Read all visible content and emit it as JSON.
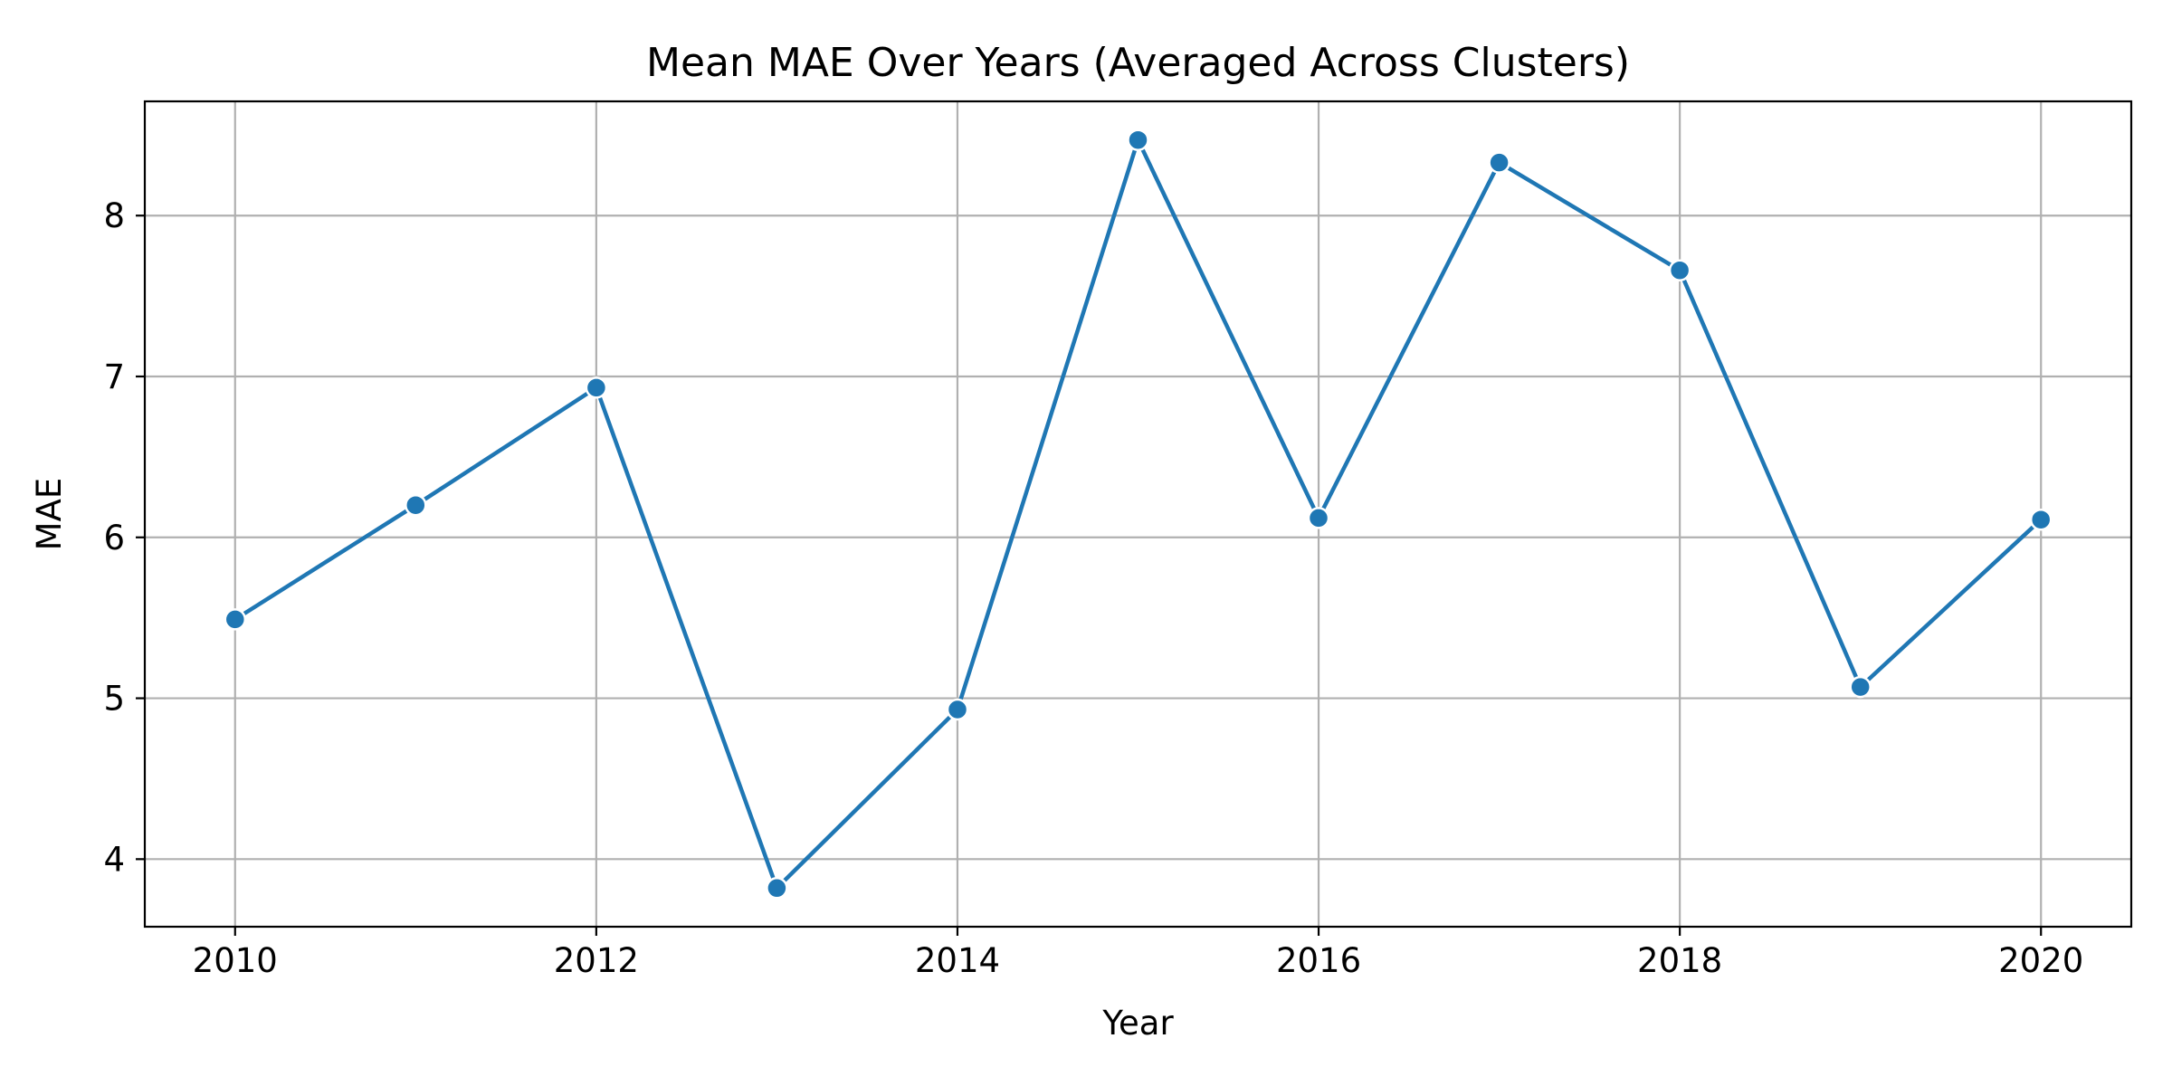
{
  "chart_data": {
    "type": "line",
    "title": "Mean MAE Over Years (Averaged Across Clusters)",
    "xlabel": "Year",
    "ylabel": "MAE",
    "x": [
      2010,
      2011,
      2012,
      2013,
      2014,
      2015,
      2016,
      2017,
      2018,
      2019,
      2020
    ],
    "series": [
      {
        "values": [
          5.49,
          6.2,
          6.93,
          3.82,
          4.93,
          8.47,
          6.12,
          8.33,
          7.66,
          5.07,
          6.11
        ],
        "color": "#1f77b4",
        "marker": "circle"
      }
    ],
    "xlim": [
      2009.5,
      2020.5
    ],
    "ylim": [
      3.58,
      8.71
    ],
    "xticks": [
      2010,
      2012,
      2014,
      2016,
      2018,
      2020
    ],
    "yticks": [
      4,
      5,
      6,
      7,
      8
    ],
    "grid": true,
    "legend": "none",
    "colors": {
      "grid": "#b0b0b0",
      "axes": "#000000",
      "background": "#ffffff"
    }
  }
}
